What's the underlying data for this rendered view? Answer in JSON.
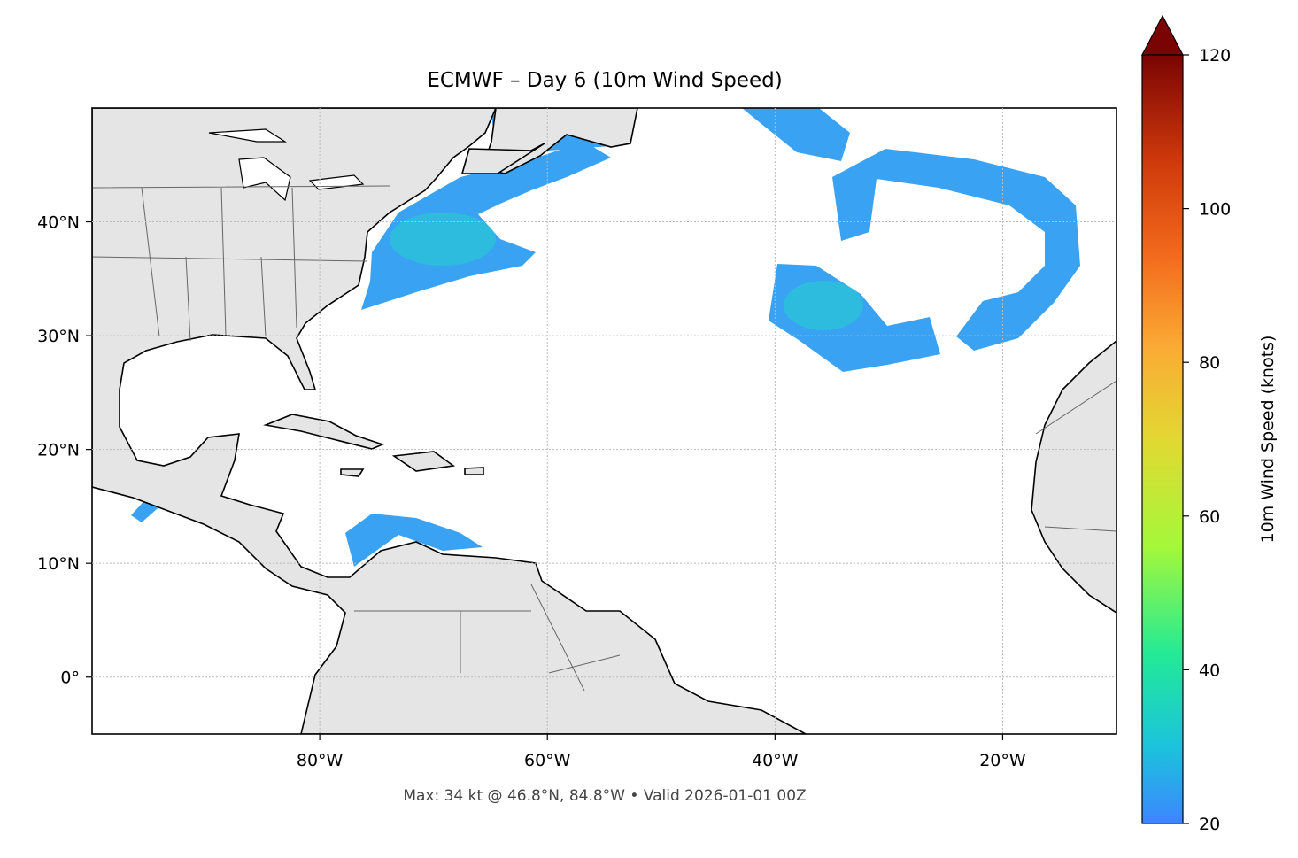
{
  "map": {
    "title": "ECMWF – Day 6 (10m Wind Speed)",
    "footer": "Max: 34 kt @ 46.8°N, 84.8°W • Valid 2026-01-01 00Z",
    "xlim": [
      -100,
      -10
    ],
    "ylim": [
      -5,
      50
    ],
    "xticks": [
      {
        "value": -80,
        "label": "80°W"
      },
      {
        "value": -60,
        "label": "60°W"
      },
      {
        "value": -40,
        "label": "40°W"
      },
      {
        "value": -20,
        "label": "20°W"
      }
    ],
    "yticks": [
      {
        "value": 0,
        "label": "0°"
      },
      {
        "value": 10,
        "label": "10°N"
      },
      {
        "value": 20,
        "label": "20°N"
      },
      {
        "value": 30,
        "label": "30°N"
      },
      {
        "value": 40,
        "label": "40°N"
      }
    ],
    "grid": true,
    "colorbar": {
      "label": "10m Wind Speed (knots)",
      "lim": [
        20,
        120
      ],
      "ticks": [
        20,
        40,
        60,
        80,
        100,
        120
      ]
    }
  }
}
